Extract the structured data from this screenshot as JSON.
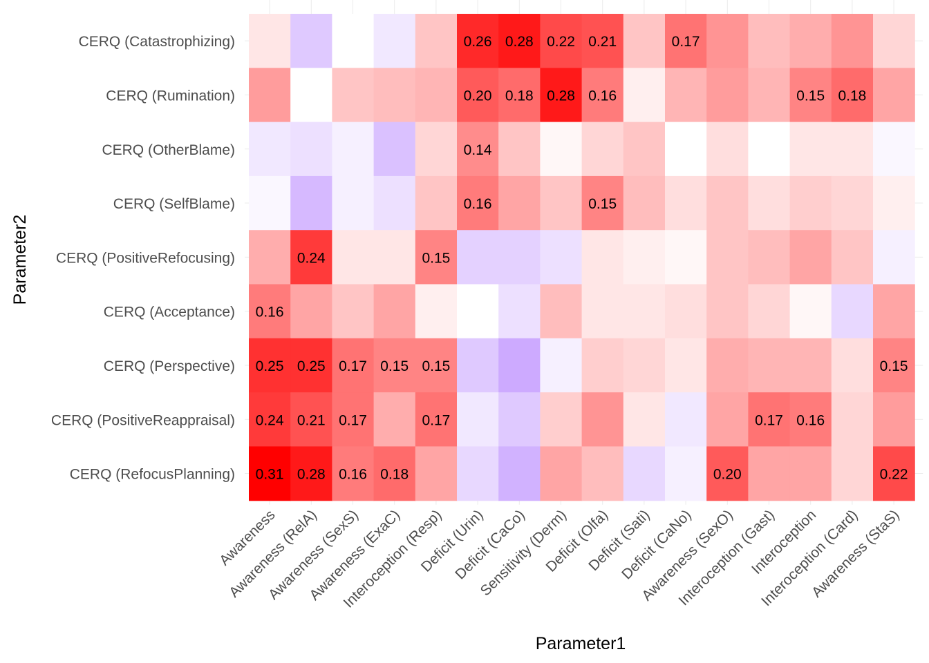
{
  "chart_data": {
    "type": "heatmap",
    "xlabel": "Parameter1",
    "ylabel": "Parameter2",
    "x_categories": [
      "Awareness",
      "Awareness (RelA)",
      "Awareness (SexS)",
      "Awareness (ExaC)",
      "Interoception (Resp)",
      "Deficit (Urin)",
      "Deficit (CaCo)",
      "Sensitivity (Derm)",
      "Deficit (Olfa)",
      "Deficit (Sati)",
      "Deficit (CaNo)",
      "Awareness (SexO)",
      "Interoception (Gast)",
      "Interoception",
      "Interoception (Card)",
      "Awareness (StaS)"
    ],
    "y_categories": [
      "CERQ (Catastrophizing)",
      "CERQ (Rumination)",
      "CERQ (OtherBlame)",
      "CERQ (SelfBlame)",
      "CERQ (PositiveRefocusing)",
      "CERQ (Acceptance)",
      "CERQ (Perspective)",
      "CERQ (PositiveReappraisal)",
      "CERQ (RefocusPlanning)"
    ],
    "values": [
      [
        0.03,
        -0.07,
        0.0,
        -0.03,
        0.07,
        0.26,
        0.28,
        0.22,
        0.21,
        0.07,
        0.17,
        0.13,
        0.08,
        0.1,
        0.13,
        0.05
      ],
      [
        0.12,
        0.0,
        0.07,
        0.08,
        0.09,
        0.2,
        0.18,
        0.28,
        0.16,
        0.02,
        0.09,
        0.12,
        0.09,
        0.15,
        0.18,
        0.11
      ],
      [
        -0.03,
        -0.04,
        -0.02,
        -0.08,
        0.05,
        0.14,
        0.07,
        0.01,
        0.05,
        0.07,
        0.0,
        0.04,
        0.0,
        0.03,
        0.03,
        -0.01
      ],
      [
        -0.01,
        -0.09,
        -0.02,
        -0.04,
        0.07,
        0.16,
        0.11,
        0.07,
        0.15,
        0.08,
        0.04,
        0.07,
        0.04,
        0.06,
        0.05,
        0.02
      ],
      [
        0.1,
        0.24,
        0.03,
        0.03,
        0.15,
        -0.06,
        -0.06,
        -0.04,
        0.03,
        0.02,
        0.01,
        0.07,
        0.08,
        0.11,
        0.07,
        -0.02
      ],
      [
        0.16,
        0.11,
        0.07,
        0.11,
        0.02,
        0.0,
        -0.04,
        0.08,
        0.03,
        0.03,
        0.04,
        0.07,
        0.05,
        0.01,
        -0.05,
        0.11
      ],
      [
        0.25,
        0.25,
        0.17,
        0.15,
        0.15,
        -0.07,
        -0.11,
        -0.02,
        0.06,
        0.05,
        0.03,
        0.1,
        0.09,
        0.09,
        0.04,
        0.15
      ],
      [
        0.24,
        0.21,
        0.17,
        0.1,
        0.17,
        -0.03,
        -0.07,
        0.06,
        0.13,
        0.03,
        -0.03,
        0.11,
        0.17,
        0.16,
        0.05,
        0.12
      ],
      [
        0.31,
        0.28,
        0.16,
        0.18,
        0.11,
        -0.05,
        -0.1,
        0.11,
        0.08,
        -0.05,
        -0.02,
        0.2,
        0.11,
        0.11,
        0.05,
        0.22
      ]
    ],
    "labels": [
      [
        "",
        "",
        "",
        "",
        "",
        "0.26",
        "0.28",
        "0.22",
        "0.21",
        "",
        "0.17",
        "",
        "",
        "",
        "",
        ""
      ],
      [
        "",
        "",
        "",
        "",
        "",
        "0.20",
        "0.18",
        "0.28",
        "0.16",
        "",
        "",
        "",
        "",
        "0.15",
        "0.18",
        ""
      ],
      [
        "",
        "",
        "",
        "",
        "",
        "0.14",
        "",
        "",
        "",
        "",
        "",
        "",
        "",
        "",
        "",
        ""
      ],
      [
        "",
        "",
        "",
        "",
        "",
        "0.16",
        "",
        "",
        "0.15",
        "",
        "",
        "",
        "",
        "",
        "",
        ""
      ],
      [
        "",
        "0.24",
        "",
        "",
        "0.15",
        "",
        "",
        "",
        "",
        "",
        "",
        "",
        "",
        "",
        "",
        ""
      ],
      [
        "0.16",
        "",
        "",
        "",
        "",
        "",
        "",
        "",
        "",
        "",
        "",
        "",
        "",
        "",
        "",
        ""
      ],
      [
        "0.25",
        "0.25",
        "0.17",
        "0.15",
        "0.15",
        "",
        "",
        "",
        "",
        "",
        "",
        "",
        "",
        "",
        "",
        "0.15"
      ],
      [
        "0.24",
        "0.21",
        "0.17",
        "",
        "0.17",
        "",
        "",
        "",
        "",
        "",
        "",
        "",
        "0.17",
        "0.16",
        "",
        ""
      ],
      [
        "0.31",
        "0.28",
        "0.16",
        "0.18",
        "",
        "",
        "",
        "",
        "",
        "",
        "",
        "0.20",
        "",
        "",
        "",
        "0.22"
      ]
    ],
    "color_scale": {
      "low": "#c8a2ff",
      "mid": "#ffffff",
      "high": "#ff0000",
      "min": -0.12,
      "max": 0.31
    },
    "grid": true,
    "legend": "none"
  }
}
